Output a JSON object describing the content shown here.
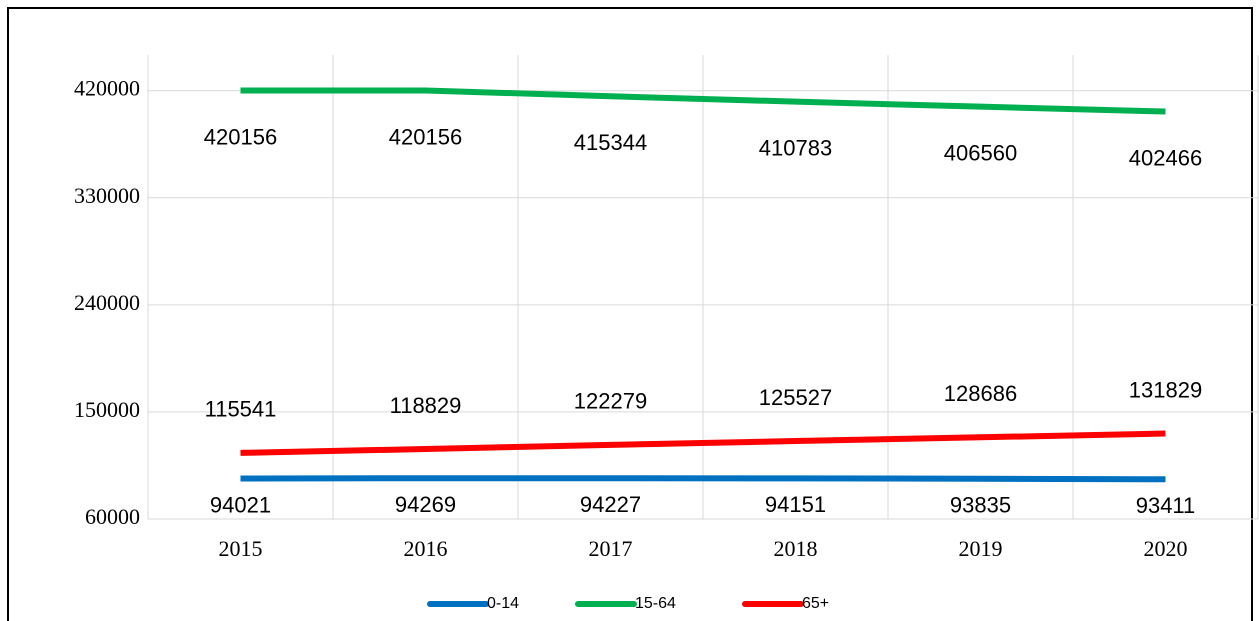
{
  "chart_data": {
    "type": "line",
    "categories": [
      "2015",
      "2016",
      "2017",
      "2018",
      "2019",
      "2020"
    ],
    "series": [
      {
        "name": "0-14",
        "color": "#0070c0",
        "values": [
          94021,
          94269,
          94227,
          94151,
          93835,
          93411
        ]
      },
      {
        "name": "15-64",
        "color": "#00b050",
        "values": [
          420156,
          420156,
          415344,
          410783,
          406560,
          402466
        ]
      },
      {
        "name": "65+",
        "color": "#ff0000",
        "values": [
          115541,
          118829,
          122279,
          125527,
          128686,
          131829
        ]
      }
    ],
    "ylim": [
      60000,
      450000
    ],
    "yticks": [
      60000,
      150000,
      240000,
      330000,
      420000
    ],
    "grid": true,
    "legend": "bottom",
    "data_labels": true
  }
}
